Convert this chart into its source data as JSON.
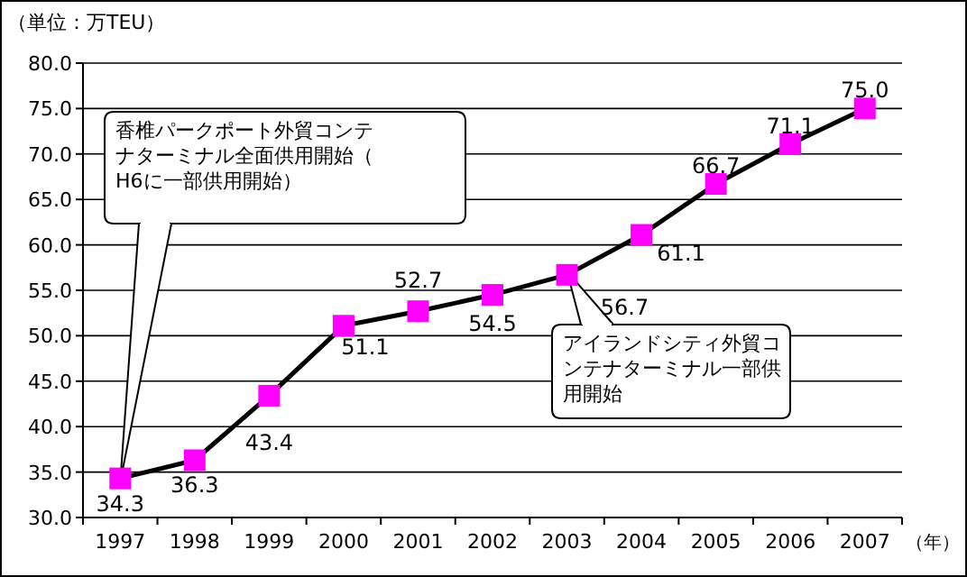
{
  "chart_data": {
    "type": "line",
    "ylabel": "（単位：万TEU）",
    "xlabel": "（年）",
    "categories": [
      "1997",
      "1998",
      "1999",
      "2000",
      "2001",
      "2002",
      "2003",
      "2004",
      "2005",
      "2006",
      "2007"
    ],
    "series": [
      {
        "color": "#ff00ff",
        "values": [
          34.3,
          36.3,
          43.4,
          51.1,
          52.7,
          54.5,
          56.7,
          61.1,
          66.7,
          71.1,
          75.0
        ],
        "value_labels": [
          "34.3",
          "36.3",
          "43.4",
          "51.1",
          "52.7",
          "54.5",
          "56.7",
          "61.1",
          "66.7",
          "71.1",
          "75.0"
        ]
      }
    ],
    "marker": "square",
    "line_style": "solid",
    "grid": "y",
    "ylim": [
      30,
      80
    ],
    "yticks": [
      {
        "value": 30,
        "label": "30.0"
      },
      {
        "value": 35,
        "label": "35.0"
      },
      {
        "value": 40,
        "label": "40.0"
      },
      {
        "value": 45,
        "label": "45.0"
      },
      {
        "value": 50,
        "label": "50.0"
      },
      {
        "value": 55,
        "label": "55.0"
      },
      {
        "value": 60,
        "label": "60.0"
      },
      {
        "value": 65,
        "label": "65.0"
      },
      {
        "value": 70,
        "label": "70.0"
      },
      {
        "value": 75,
        "label": "75.0"
      },
      {
        "value": 80,
        "label": "80.0"
      }
    ],
    "annotations": [
      "香椎パークポート外貿コンテナターミナル全面供用開始（H6に一部供用開始）",
      {
        "text": "アイランドシティ外貿コンテナターミナル一部供用開始",
        "x": "2003",
        "y": 56.7
      }
    ]
  }
}
